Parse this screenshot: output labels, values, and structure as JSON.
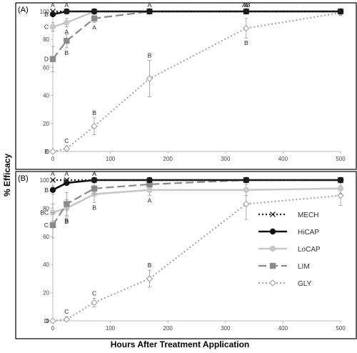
{
  "figure": {
    "ylabel": "% Efficacy",
    "xlabel": "Hours After Treatment Application"
  },
  "legend": {
    "placement": "middle-right of panel B",
    "entries": [
      {
        "name": "MECH",
        "color": "#222222",
        "dash": "dot",
        "marker": "x-icon"
      },
      {
        "name": "HiCAP",
        "color": "#111111",
        "dash": "solid",
        "marker": "filled-circle-icon"
      },
      {
        "name": "LoCAP",
        "color": "#c8c8c8",
        "dash": "solid",
        "marker": "filled-circle-icon"
      },
      {
        "name": "LIM",
        "color": "#8a8a8a",
        "dash": "long-dash",
        "marker": "filled-square-icon"
      },
      {
        "name": "GLY",
        "color": "#a8a8a8",
        "dash": "dot",
        "marker": "open-diamond-icon"
      }
    ]
  },
  "chart_data": [
    {
      "type": "line",
      "panel_label": "(A)",
      "x_ticks": [
        "0",
        "100",
        "200",
        "300",
        "400",
        "500"
      ],
      "y_ticks": [
        "0",
        "20",
        "40",
        "60",
        "80",
        "100"
      ],
      "xlim": [
        0,
        500
      ],
      "ylim": [
        0,
        100
      ],
      "grid": false,
      "series": [
        {
          "name": "MECH",
          "x": [
            0,
            24,
            72,
            168,
            336,
            500
          ],
          "y": [
            100,
            100,
            100,
            100,
            100,
            100
          ],
          "err": [
            0,
            0,
            0,
            0,
            0,
            0
          ],
          "letters": [
            "A",
            "A",
            "",
            "",
            "A",
            ""
          ]
        },
        {
          "name": "HiCAP",
          "x": [
            0,
            24,
            72,
            168,
            336,
            500
          ],
          "y": [
            98,
            100,
            100,
            100,
            100,
            100
          ],
          "err": [
            0,
            0,
            0,
            0,
            0,
            0
          ],
          "letters": [
            "B",
            "",
            "",
            "",
            "A",
            ""
          ]
        },
        {
          "name": "LoCAP",
          "x": [
            0,
            24,
            72,
            168,
            336,
            500
          ],
          "y": [
            89,
            92,
            100,
            100,
            100,
            100
          ],
          "err": [
            3,
            3,
            0,
            0,
            0,
            0
          ],
          "letters": [
            "C",
            "A",
            "",
            "",
            "AB",
            ""
          ]
        },
        {
          "name": "LIM",
          "x": [
            0,
            24,
            72,
            168,
            336,
            500
          ],
          "y": [
            66,
            79,
            95,
            100,
            100,
            100
          ],
          "err": [
            9,
            5,
            3,
            0,
            0,
            0
          ],
          "letters": [
            "D",
            "B",
            "A",
            "A",
            "AB",
            ""
          ]
        },
        {
          "name": "GLY",
          "x": [
            0,
            24,
            72,
            168,
            336,
            500
          ],
          "y": [
            0,
            2,
            18,
            52,
            88,
            99
          ],
          "err": [
            0,
            2,
            6,
            13,
            7,
            2
          ],
          "letters": [
            "E",
            "C",
            "B",
            "B",
            "B",
            ""
          ]
        }
      ]
    },
    {
      "type": "line",
      "panel_label": "(B)",
      "x_ticks": [
        "0",
        "100",
        "200",
        "300",
        "400",
        "500"
      ],
      "y_ticks": [
        "0",
        "20",
        "40",
        "60",
        "80",
        "100"
      ],
      "xlim": [
        0,
        500
      ],
      "ylim": [
        0,
        100
      ],
      "grid": false,
      "series": [
        {
          "name": "MECH",
          "x": [
            0,
            24,
            72,
            168,
            336,
            500
          ],
          "y": [
            100,
            100,
            100,
            100,
            100,
            100
          ],
          "err": [
            0,
            0,
            0,
            0,
            0,
            0
          ],
          "letters": [
            "A",
            "A",
            "A",
            "",
            "",
            ""
          ]
        },
        {
          "name": "HiCAP",
          "x": [
            0,
            24,
            72,
            168,
            336,
            500
          ],
          "y": [
            93,
            98,
            100,
            100,
            100,
            100
          ],
          "err": [
            3,
            2,
            0,
            0,
            0,
            0
          ],
          "letters": [
            "B",
            "",
            "A",
            "",
            "",
            ""
          ]
        },
        {
          "name": "LoCAP",
          "x": [
            0,
            24,
            72,
            168,
            336,
            500
          ],
          "y": [
            77,
            80,
            90,
            93,
            93,
            94
          ],
          "err": [
            6,
            6,
            6,
            4,
            4,
            4
          ],
          "letters": [
            "BC",
            "B",
            "B",
            "A",
            "",
            ""
          ]
        },
        {
          "name": "LIM",
          "x": [
            0,
            24,
            72,
            168,
            336,
            500
          ],
          "y": [
            68,
            83,
            94,
            97,
            100,
            100
          ],
          "err": [
            9,
            8,
            4,
            2,
            0,
            0
          ],
          "letters": [
            "C",
            "B",
            "",
            "",
            "",
            ""
          ]
        },
        {
          "name": "GLY",
          "x": [
            0,
            24,
            72,
            168,
            336,
            500
          ],
          "y": [
            0,
            1,
            13,
            30,
            83,
            89
          ],
          "err": [
            0,
            2,
            3,
            6,
            11,
            7
          ],
          "letters": [
            "D",
            "C",
            "C",
            "B",
            "",
            ""
          ]
        }
      ]
    }
  ]
}
